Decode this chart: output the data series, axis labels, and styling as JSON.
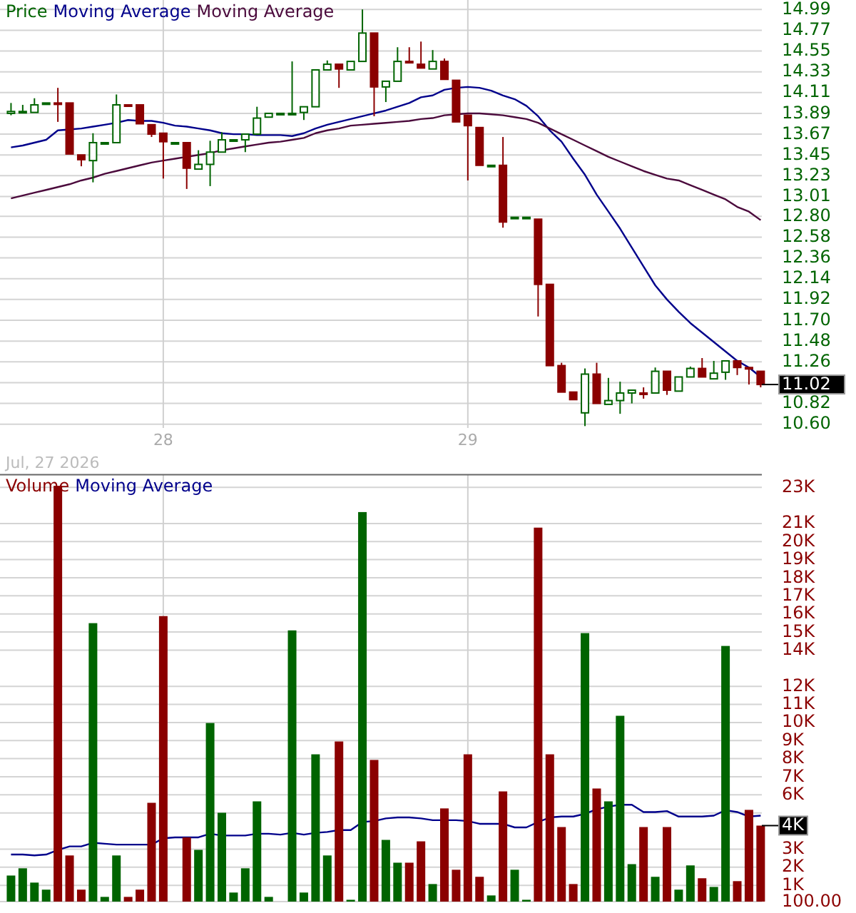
{
  "chart_data": [
    {
      "type": "candlestick",
      "categories": [
        null,
        null,
        null,
        null,
        null,
        null,
        null,
        null,
        null,
        null,
        null,
        null,
        null,
        "28",
        null,
        null,
        null,
        null,
        null,
        null,
        null,
        null,
        null,
        null,
        null,
        null,
        null,
        null,
        null,
        null,
        null,
        null,
        null,
        null,
        null,
        null,
        null,
        null,
        null,
        "29",
        null,
        null,
        null,
        null,
        null,
        null,
        null,
        null,
        null,
        null,
        null,
        null,
        null,
        null,
        null,
        null,
        null,
        null,
        null,
        null,
        null,
        null,
        null,
        null,
        null
      ],
      "series": [
        {
          "name": "Price",
          "type": "candlestick",
          "color": "#006400",
          "colors": [
            "#006400",
            "#006400",
            "#006400",
            "#006400",
            "#8b0000",
            "#8b0000",
            "#8b0000",
            "#006400",
            "#006400",
            "#006400",
            "#8b0000",
            "#8b0000",
            "#8b0000",
            "#8b0000",
            "#006400",
            "#8b0000",
            "#006400",
            "#006400",
            "#006400",
            "#006400",
            "#006400",
            "#006400",
            "#006400",
            "#006400",
            "#006400",
            "#006400",
            "#006400",
            "#006400",
            "#8b0000",
            "#006400",
            "#006400",
            "#8b0000",
            "#006400",
            "#006400",
            "#8b0000",
            "#8b0000",
            "#006400",
            "#8b0000",
            "#8b0000",
            "#8b0000",
            "#8b0000",
            "#006400",
            "#8b0000",
            "#006400",
            "#006400",
            "#8b0000",
            "#8b0000",
            "#8b0000",
            "#8b0000",
            "#006400",
            "#8b0000",
            "#006400",
            "#006400",
            "#006400",
            "#8b0000",
            "#006400",
            "#8b0000",
            "#006400",
            "#006400",
            "#8b0000",
            "#006400",
            "#006400",
            "#8b0000",
            "#8b0000",
            "#8b0000"
          ],
          "ohlc": [
            [
              13.89,
              14.0,
              13.87,
              13.91
            ],
            [
              13.9,
              13.98,
              13.9,
              13.91
            ],
            [
              13.9,
              14.05,
              13.9,
              13.98
            ],
            [
              13.99,
              14.0,
              13.99,
              14.0
            ],
            [
              14.0,
              14.16,
              13.8,
              13.99
            ],
            [
              14.0,
              14.0,
              13.46,
              13.46
            ],
            [
              13.45,
              13.45,
              13.33,
              13.4
            ],
            [
              13.39,
              13.68,
              13.16,
              13.58
            ],
            [
              13.58,
              13.58,
              13.58,
              13.58
            ],
            [
              13.58,
              14.09,
              13.58,
              13.98
            ],
            [
              13.98,
              13.98,
              13.98,
              13.98
            ],
            [
              13.98,
              13.98,
              13.78,
              13.78
            ],
            [
              13.77,
              13.77,
              13.64,
              13.67
            ],
            [
              13.68,
              13.68,
              13.2,
              13.59
            ],
            [
              13.58,
              13.58,
              13.58,
              13.58
            ],
            [
              13.58,
              13.58,
              13.09,
              13.31
            ],
            [
              13.3,
              13.5,
              13.3,
              13.35
            ],
            [
              13.35,
              13.6,
              13.12,
              13.48
            ],
            [
              13.48,
              13.69,
              13.48,
              13.61
            ],
            [
              13.61,
              13.61,
              13.61,
              13.61
            ],
            [
              13.61,
              13.67,
              13.48,
              13.67
            ],
            [
              13.67,
              13.96,
              13.67,
              13.84
            ],
            [
              13.85,
              13.89,
              13.85,
              13.89
            ],
            [
              13.89,
              13.89,
              13.89,
              13.89
            ],
            [
              13.89,
              14.44,
              13.89,
              13.89
            ],
            [
              13.9,
              13.96,
              13.82,
              13.96
            ],
            [
              13.96,
              14.35,
              13.96,
              14.35
            ],
            [
              14.35,
              14.45,
              14.35,
              14.41
            ],
            [
              14.41,
              14.41,
              14.16,
              14.36
            ],
            [
              14.35,
              14.44,
              14.35,
              14.44
            ],
            [
              14.44,
              14.99,
              14.44,
              14.74
            ],
            [
              14.74,
              14.74,
              13.86,
              14.17
            ],
            [
              14.17,
              14.23,
              14.01,
              14.23
            ],
            [
              14.23,
              14.59,
              14.23,
              14.44
            ],
            [
              14.44,
              14.59,
              14.44,
              14.44
            ],
            [
              14.41,
              14.65,
              14.37,
              14.37
            ],
            [
              14.36,
              14.56,
              14.36,
              14.44
            ],
            [
              14.44,
              14.47,
              14.25,
              14.25
            ],
            [
              14.24,
              14.24,
              13.8,
              13.8
            ],
            [
              13.87,
              13.87,
              13.18,
              13.76
            ],
            [
              13.74,
              13.74,
              13.34,
              13.34
            ],
            [
              13.34,
              13.34,
              13.34,
              13.34
            ],
            [
              13.34,
              13.64,
              12.68,
              12.74
            ],
            [
              12.79,
              12.79,
              12.79,
              12.79
            ],
            [
              12.79,
              12.79,
              12.79,
              12.79
            ],
            [
              12.77,
              12.77,
              11.74,
              12.08
            ],
            [
              12.08,
              12.08,
              11.22,
              11.22
            ],
            [
              11.22,
              11.25,
              10.94,
              10.94
            ],
            [
              10.94,
              10.94,
              10.86,
              10.86
            ],
            [
              10.72,
              11.19,
              10.58,
              11.13
            ],
            [
              11.13,
              11.25,
              10.82,
              10.82
            ],
            [
              10.81,
              11.09,
              10.81,
              10.85
            ],
            [
              10.85,
              11.05,
              10.71,
              10.93
            ],
            [
              10.93,
              10.96,
              10.82,
              10.96
            ],
            [
              10.93,
              10.99,
              10.87,
              10.93
            ],
            [
              10.93,
              11.2,
              10.93,
              11.16
            ],
            [
              11.16,
              11.16,
              10.91,
              10.96
            ],
            [
              10.95,
              11.1,
              10.95,
              11.1
            ],
            [
              11.1,
              11.21,
              11.1,
              11.19
            ],
            [
              11.19,
              11.3,
              11.1,
              11.1
            ],
            [
              11.08,
              11.27,
              11.08,
              11.14
            ],
            [
              11.15,
              11.27,
              11.07,
              11.27
            ],
            [
              11.27,
              11.27,
              11.12,
              11.2
            ],
            [
              11.2,
              11.2,
              11.02,
              11.2
            ],
            [
              11.16,
              11.16,
              10.99,
              11.02
            ]
          ]
        },
        {
          "name": "Moving Average",
          "type": "line",
          "color": "#00008b",
          "values": [
            13.53,
            13.55,
            13.58,
            13.61,
            13.71,
            13.72,
            13.73,
            13.75,
            13.77,
            13.79,
            13.82,
            13.81,
            13.81,
            13.79,
            13.76,
            13.75,
            13.73,
            13.71,
            13.68,
            13.67,
            13.67,
            13.66,
            13.66,
            13.66,
            13.65,
            13.68,
            13.73,
            13.77,
            13.8,
            13.83,
            13.86,
            13.89,
            13.92,
            13.96,
            14.0,
            14.06,
            14.08,
            14.14,
            14.16,
            14.17,
            14.16,
            14.13,
            14.08,
            14.04,
            13.97,
            13.86,
            13.71,
            13.59,
            13.41,
            13.24,
            13.03,
            12.85,
            12.67,
            12.47,
            12.27,
            12.07,
            11.92,
            11.79,
            11.67,
            11.57,
            11.47,
            11.37,
            11.27,
            11.2,
            11.1
          ]
        },
        {
          "name": "Moving Average",
          "type": "line",
          "color": "#4b0a3c",
          "values": [
            12.99,
            13.02,
            13.05,
            13.08,
            13.11,
            13.14,
            13.18,
            13.21,
            13.25,
            13.28,
            13.31,
            13.34,
            13.37,
            13.39,
            13.41,
            13.43,
            13.45,
            13.47,
            13.5,
            13.52,
            13.54,
            13.56,
            13.58,
            13.59,
            13.61,
            13.63,
            13.68,
            13.71,
            13.73,
            13.76,
            13.77,
            13.78,
            13.79,
            13.8,
            13.81,
            13.83,
            13.84,
            13.87,
            13.88,
            13.89,
            13.89,
            13.88,
            13.87,
            13.85,
            13.83,
            13.79,
            13.73,
            13.67,
            13.61,
            13.55,
            13.49,
            13.43,
            13.38,
            13.33,
            13.28,
            13.24,
            13.2,
            13.18,
            13.13,
            13.08,
            13.03,
            12.98,
            12.9,
            12.85,
            12.76
          ]
        }
      ],
      "ylim": [
        10.56,
        15.09
      ],
      "yticks": [
        14.99,
        14.77,
        14.55,
        14.33,
        14.11,
        13.89,
        13.67,
        13.45,
        13.23,
        13.01,
        {
          "value": 12.8,
          "label": "12.80"
        },
        12.58,
        12.36,
        12.14,
        11.92,
        {
          "value": 11.7,
          "label": "11.70"
        },
        11.48,
        11.26,
        {
          "value": 11.04,
          "label": null
        },
        10.82,
        {
          "value": 10.6,
          "label": "10.60"
        }
      ],
      "grid": true,
      "legend": "top left",
      "ref_lines": [
        {
          "axis": "y",
          "value": 11.02,
          "label": "11.02",
          "color": "#000000"
        }
      ],
      "annotations": [
        "Jul, 27 2026"
      ]
    },
    {
      "type": "bar",
      "categories": [
        null,
        null,
        null,
        null,
        null,
        null,
        null,
        null,
        null,
        null,
        null,
        null,
        null,
        "28",
        null,
        null,
        null,
        null,
        null,
        null,
        null,
        null,
        null,
        null,
        null,
        null,
        null,
        null,
        null,
        null,
        null,
        null,
        null,
        null,
        null,
        null,
        null,
        null,
        null,
        "29",
        null,
        null,
        null,
        null,
        null,
        null,
        null,
        null,
        null,
        null,
        null,
        null,
        null,
        null,
        null,
        null,
        null,
        null,
        null,
        null,
        null,
        null,
        null,
        null,
        null
      ],
      "series": [
        {
          "name": "Volume",
          "type": "bar",
          "color": "#8b0000",
          "colors": [
            "#006400",
            "#006400",
            "#006400",
            "#006400",
            "#8b0000",
            "#8b0000",
            "#8b0000",
            "#006400",
            "#006400",
            "#006400",
            "#8b0000",
            "#8b0000",
            "#8b0000",
            "#8b0000",
            null,
            "#8b0000",
            "#006400",
            "#006400",
            "#006400",
            "#006400",
            "#006400",
            "#006400",
            "#006400",
            null,
            "#006400",
            "#006400",
            "#006400",
            "#006400",
            "#8b0000",
            "#006400",
            "#006400",
            "#8b0000",
            "#006400",
            "#006400",
            "#8b0000",
            "#8b0000",
            "#006400",
            "#8b0000",
            "#8b0000",
            "#8b0000",
            "#8b0000",
            "#006400",
            "#8b0000",
            "#006400",
            "#006400",
            "#8b0000",
            "#8b0000",
            "#8b0000",
            "#8b0000",
            "#006400",
            "#8b0000",
            "#006400",
            "#006400",
            "#006400",
            "#8b0000",
            "#006400",
            "#8b0000",
            "#006400",
            "#006400",
            "#8b0000",
            "#006400",
            "#006400",
            "#8b0000",
            "#8b0000",
            "#8b0000"
          ],
          "values": [
            1540,
            1940,
            1150,
            760,
            23080,
            2650,
            760,
            15490,
            360,
            2650,
            360,
            760,
            5560,
            15880,
            null,
            3650,
            2960,
            9970,
            5010,
            600,
            1940,
            5640,
            360,
            null,
            15090,
            600,
            8240,
            2650,
            8950,
            200,
            21630,
            7930,
            3510,
            2250,
            2250,
            3430,
            1070,
            5250,
            1860,
            8240,
            1470,
            440,
            6190,
            1860,
            200,
            20770,
            8240,
            4220,
            1070,
            14940,
            6350,
            5640,
            10370,
            2170,
            4220,
            1470,
            4220,
            760,
            2100,
            1390,
            910,
            14230,
            1230,
            5170,
            4300
          ]
        },
        {
          "name": "Moving Average",
          "type": "line",
          "color": "#00008b",
          "values": [
            2700,
            2700,
            2650,
            2700,
            2950,
            3150,
            3150,
            3350,
            3300,
            3250,
            3250,
            3250,
            3250,
            3600,
            3650,
            3650,
            3650,
            3850,
            3750,
            3750,
            3750,
            3850,
            3850,
            3800,
            3900,
            3800,
            3900,
            3950,
            4050,
            4050,
            4500,
            4550,
            4700,
            4750,
            4750,
            4700,
            4600,
            4600,
            4600,
            4550,
            4400,
            4400,
            4400,
            4200,
            4200,
            4500,
            4750,
            4800,
            4800,
            4950,
            5200,
            5350,
            5450,
            5450,
            5050,
            5050,
            5100,
            4800,
            4800,
            4800,
            4850,
            5150,
            5050,
            4800,
            4850
          ]
        }
      ],
      "ylim": [
        100,
        23700
      ],
      "yticks": [
        {
          "value": 100,
          "label": "100.00"
        },
        {
          "value": 1000,
          "label": "1K"
        },
        {
          "value": 2000,
          "label": "2K"
        },
        {
          "value": 3000,
          "label": "3K"
        },
        {
          "value": 5000,
          "label": null
        },
        {
          "value": 6000,
          "label": "6K"
        },
        {
          "value": 7000,
          "label": "7K"
        },
        {
          "value": 8000,
          "label": "8K"
        },
        {
          "value": 9000,
          "label": "9K"
        },
        {
          "value": 10000,
          "label": "10K"
        },
        {
          "value": 11000,
          "label": "11K"
        },
        {
          "value": 12000,
          "label": "12K"
        },
        {
          "value": 14000,
          "label": "14K"
        },
        {
          "value": 15000,
          "label": "15K"
        },
        {
          "value": 16000,
          "label": "16K"
        },
        {
          "value": 17000,
          "label": "17K"
        },
        {
          "value": 18000,
          "label": "18K"
        },
        {
          "value": 19000,
          "label": "19K"
        },
        {
          "value": 20000,
          "label": "20K"
        },
        {
          "value": 21000,
          "label": "21K"
        },
        {
          "value": 23000,
          "label": "23K"
        }
      ],
      "grid": true,
      "legend": "top left",
      "tick_labels": "y",
      "ref_lines": [
        {
          "axis": "y",
          "value": 4300,
          "label": "4K",
          "color": "#000000"
        }
      ]
    }
  ]
}
